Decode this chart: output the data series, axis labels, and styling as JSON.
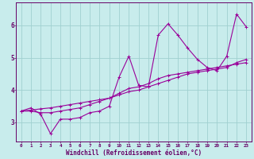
{
  "xlabel": "Windchill (Refroidissement éolien,°C)",
  "ylabel": "",
  "bg_color": "#c8ecec",
  "line_color": "#990099",
  "grid_color": "#a0d0d0",
  "axis_color": "#660066",
  "tick_color": "#660066",
  "xlim": [
    -0.5,
    23.5
  ],
  "ylim": [
    2.4,
    6.7
  ],
  "xticks": [
    0,
    1,
    2,
    3,
    4,
    5,
    6,
    7,
    8,
    9,
    10,
    11,
    12,
    13,
    14,
    15,
    16,
    17,
    18,
    19,
    20,
    21,
    22,
    23
  ],
  "yticks": [
    3,
    4,
    5,
    6
  ],
  "line1": [
    3.35,
    3.45,
    3.25,
    2.65,
    3.1,
    3.1,
    3.15,
    3.3,
    3.35,
    3.5,
    4.4,
    5.05,
    4.15,
    4.1,
    5.7,
    6.05,
    5.7,
    5.3,
    4.95,
    4.7,
    4.6,
    5.05,
    6.35,
    5.95
  ],
  "line2": [
    3.35,
    3.35,
    3.3,
    3.3,
    3.35,
    3.4,
    3.45,
    3.55,
    3.65,
    3.75,
    3.9,
    4.05,
    4.1,
    4.2,
    4.35,
    4.45,
    4.5,
    4.55,
    4.6,
    4.65,
    4.7,
    4.75,
    4.8,
    4.85
  ],
  "line3": [
    3.35,
    3.38,
    3.42,
    3.45,
    3.5,
    3.55,
    3.6,
    3.65,
    3.7,
    3.75,
    3.85,
    3.95,
    4.0,
    4.1,
    4.2,
    4.3,
    4.4,
    4.5,
    4.55,
    4.6,
    4.65,
    4.7,
    4.85,
    4.95
  ]
}
